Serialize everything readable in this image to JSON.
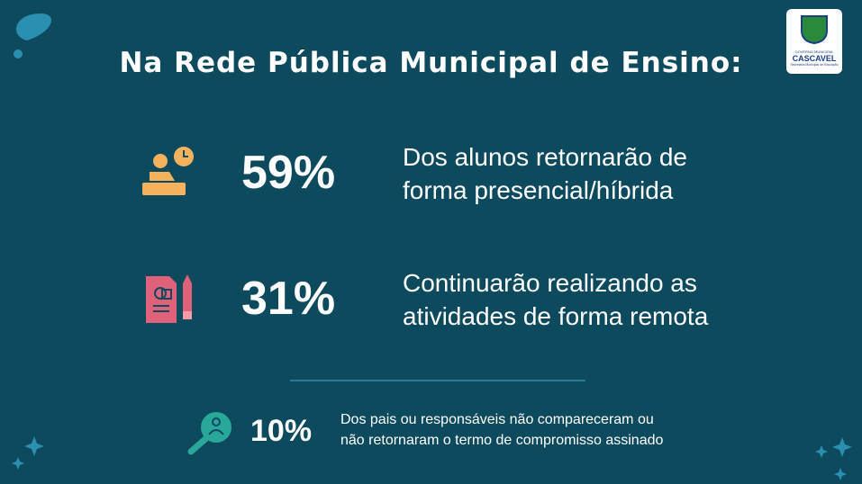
{
  "title": "Na Rede Pública Municipal de Ensino:",
  "logo": {
    "line1": "GOVERNO MUNICIPAL",
    "line2": "CASCAVEL",
    "line3": "Secretaria Municipal de Educação"
  },
  "stats": [
    {
      "value": "59%",
      "lines": [
        "Dos alunos retornarão de",
        "forma presencial/híbrida"
      ]
    },
    {
      "value": "31%",
      "lines": [
        "Continuarão realizando as",
        "atividades de forma remota"
      ]
    }
  ],
  "footnote": {
    "value": "10%",
    "lines": [
      "Dos pais ou responsáveis não compareceram ou",
      "não retornaram o termo de compromisso assinado"
    ]
  }
}
